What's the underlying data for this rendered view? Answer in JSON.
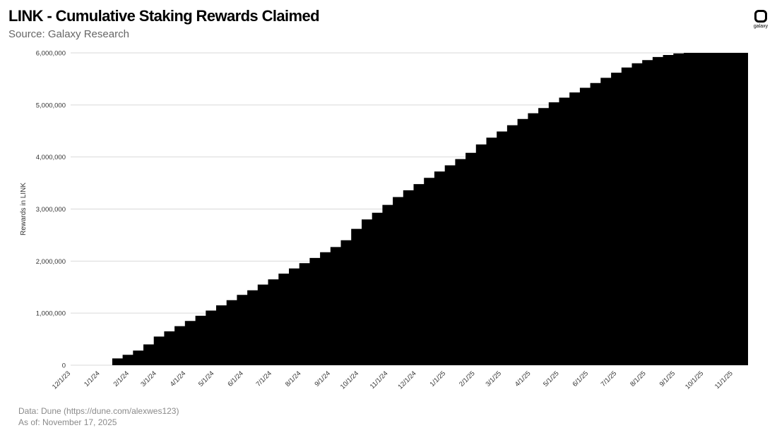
{
  "header": {
    "title": "LINK - Cumulative Staking Rewards Claimed",
    "subtitle": "Source: Galaxy Research",
    "logo_text": "galaxy"
  },
  "footer": {
    "line1": "Data: Dune (https://dune.com/alexwes123)",
    "line2": "As of: November 17, 2025"
  },
  "colors": {
    "area": "#000000",
    "grid": "#d9d9d9"
  },
  "chart_data": {
    "type": "area",
    "title": "LINK - Cumulative Staking Rewards Claimed",
    "ylabel": "Rewards in LINK",
    "xlabel": "",
    "ylim": [
      0,
      6000000
    ],
    "yticks": [
      0,
      1000000,
      2000000,
      3000000,
      4000000,
      5000000,
      6000000
    ],
    "ytick_labels": [
      "0",
      "1,000,000",
      "2,000,000",
      "3,000,000",
      "4,000,000",
      "5,000,000",
      "6,000,000"
    ],
    "xlim": [
      "2023-12-01",
      "2025-11-17"
    ],
    "xticks": [
      "2023-12-01",
      "2024-01-01",
      "2024-02-01",
      "2024-03-01",
      "2024-04-01",
      "2024-05-01",
      "2024-06-01",
      "2024-07-01",
      "2024-08-01",
      "2024-09-01",
      "2024-10-01",
      "2024-11-01",
      "2024-12-01",
      "2025-01-01",
      "2025-02-01",
      "2025-03-01",
      "2025-04-01",
      "2025-05-01",
      "2025-06-01",
      "2025-07-01",
      "2025-08-01",
      "2025-09-01",
      "2025-10-01",
      "2025-11-01"
    ],
    "xtick_labels": [
      "12/1/23",
      "1/1/24",
      "2/1/24",
      "3/1/24",
      "4/1/24",
      "5/1/24",
      "6/1/24",
      "7/1/24",
      "8/1/24",
      "9/1/24",
      "10/1/24",
      "11/1/24",
      "12/1/24",
      "1/1/25",
      "2/1/25",
      "3/1/25",
      "4/1/25",
      "5/1/25",
      "6/1/25",
      "7/1/25",
      "8/1/25",
      "9/1/25",
      "10/1/25",
      "11/1/25"
    ],
    "grid": true,
    "series": [
      {
        "x": [
          "2024-01-14",
          "2024-01-25",
          "2024-02-05",
          "2024-02-16",
          "2024-02-27",
          "2024-03-09",
          "2024-03-20",
          "2024-03-31",
          "2024-04-11",
          "2024-04-22",
          "2024-05-03",
          "2024-05-14",
          "2024-05-25",
          "2024-06-05",
          "2024-06-16",
          "2024-06-27",
          "2024-07-08",
          "2024-07-19",
          "2024-07-30",
          "2024-08-10",
          "2024-08-21",
          "2024-09-01",
          "2024-09-12",
          "2024-09-23",
          "2024-10-04",
          "2024-10-15",
          "2024-10-26",
          "2024-11-06",
          "2024-11-17",
          "2024-11-28",
          "2024-12-09",
          "2024-12-20",
          "2024-12-31",
          "2025-01-11",
          "2025-01-22",
          "2025-02-02",
          "2025-02-13",
          "2025-02-24",
          "2025-03-07",
          "2025-03-18",
          "2025-03-29",
          "2025-04-09",
          "2025-04-20",
          "2025-05-01",
          "2025-05-12",
          "2025-05-23",
          "2025-06-03",
          "2025-06-14",
          "2025-06-25",
          "2025-07-06",
          "2025-07-17",
          "2025-07-28",
          "2025-08-08",
          "2025-08-19",
          "2025-08-30",
          "2025-09-10",
          "2025-09-21",
          "2025-10-02",
          "2025-10-13",
          "2025-10-24",
          "2025-11-04",
          "2025-11-15",
          "2025-11-17"
        ],
        "values": [
          130000,
          200000,
          280000,
          400000,
          550000,
          650000,
          750000,
          850000,
          950000,
          1050000,
          1150000,
          1250000,
          1350000,
          1440000,
          1550000,
          1650000,
          1760000,
          1860000,
          1960000,
          2060000,
          2170000,
          2270000,
          2400000,
          2620000,
          2800000,
          2930000,
          3080000,
          3230000,
          3360000,
          3480000,
          3600000,
          3720000,
          3840000,
          3960000,
          4080000,
          4240000,
          4370000,
          4490000,
          4610000,
          4730000,
          4840000,
          4940000,
          5050000,
          5140000,
          5240000,
          5330000,
          5420000,
          5520000,
          5620000,
          5720000,
          5800000,
          5860000,
          5920000,
          5960000,
          5990000,
          6000000,
          6000000,
          6000000,
          6000000,
          6000000,
          6000000,
          6000000,
          6000000
        ]
      }
    ]
  }
}
